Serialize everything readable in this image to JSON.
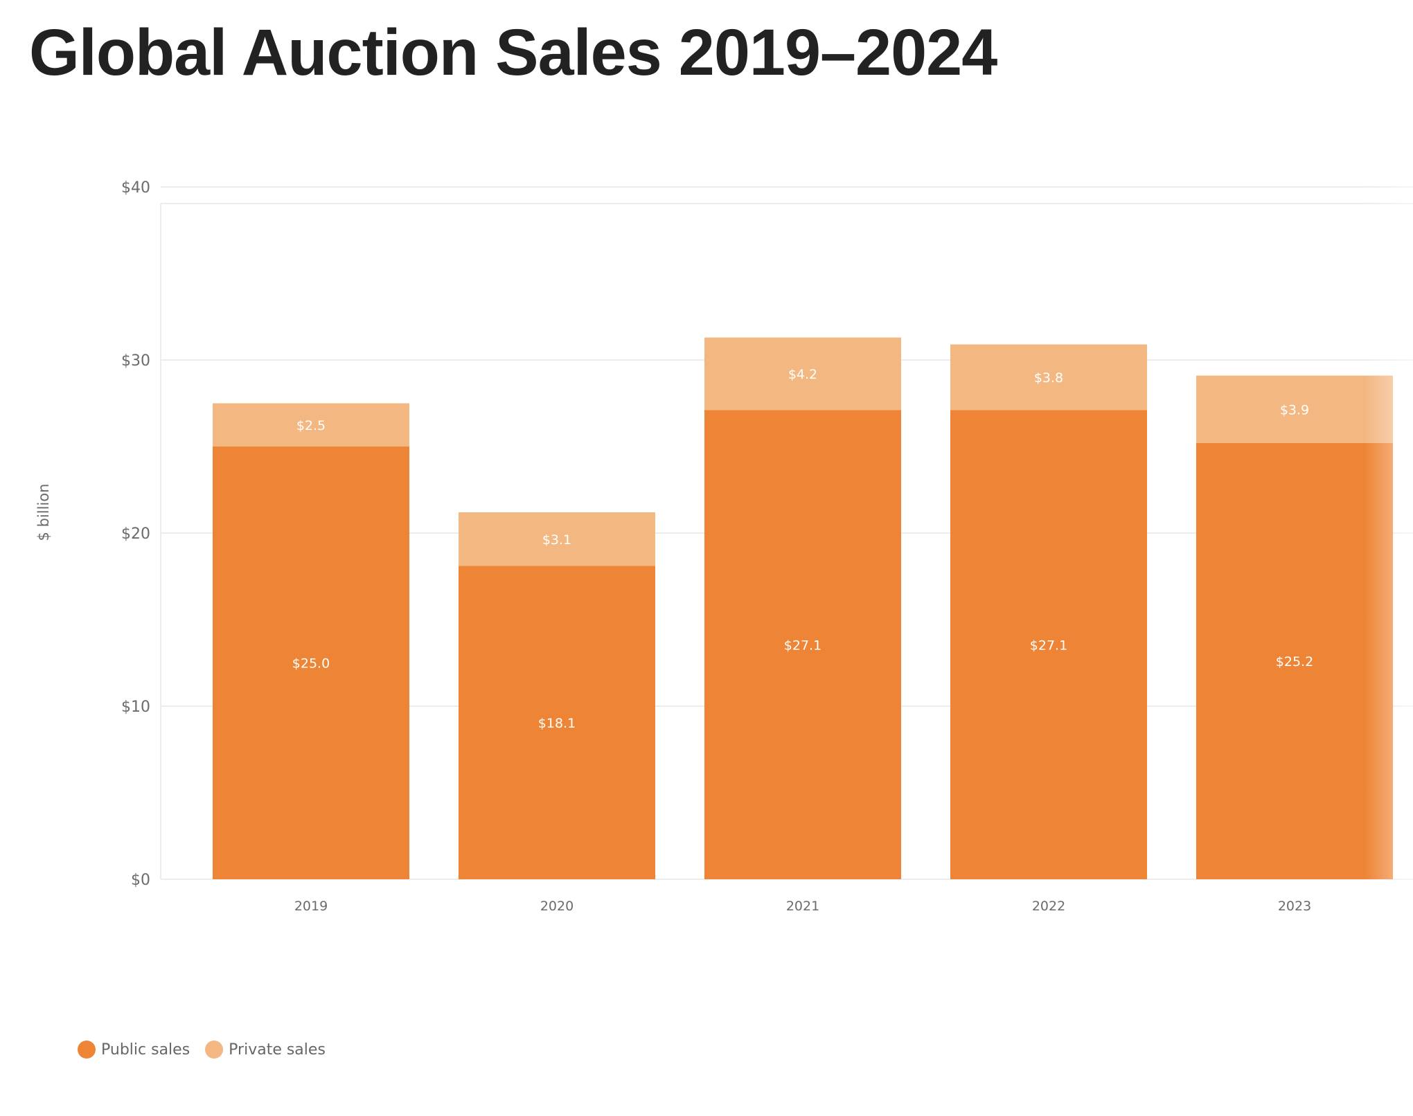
{
  "page": {
    "title": "Global Auction Sales 2019–2024"
  },
  "colors": {
    "public": "#EE8435",
    "private": "#F3B782",
    "grid": "#ECECEC",
    "axis_text": "#6B6B6B",
    "bar_label": "#FFFFFF"
  },
  "legend": {
    "items": [
      {
        "label": "Public sales",
        "color": "#EE8435"
      },
      {
        "label": "Private sales",
        "color": "#F3B782"
      }
    ]
  },
  "chart_data": {
    "type": "bar",
    "stacked": true,
    "title": "Global Auction Sales 2019–2024",
    "xlabel": "",
    "ylabel": "$ billion",
    "categories": [
      "2019",
      "2020",
      "2021",
      "2022",
      "2023"
    ],
    "series": [
      {
        "name": "Public sales",
        "values": [
          25.0,
          18.1,
          27.1,
          27.1,
          25.2
        ],
        "labels": [
          "$25.0",
          "$18.1",
          "$27.1",
          "$27.1",
          "$25.2"
        ]
      },
      {
        "name": "Private sales",
        "values": [
          2.5,
          3.1,
          4.2,
          3.8,
          3.9
        ],
        "labels": [
          "$2.5",
          "$3.1",
          "$4.2",
          "$3.8",
          "$3.9"
        ]
      }
    ],
    "ylim": [
      0,
      40
    ],
    "yticks": [
      0,
      10,
      20,
      30,
      40
    ],
    "ytick_labels": [
      "$0",
      "$10",
      "$20",
      "$30",
      "$40"
    ],
    "grid": true,
    "legend_position": "bottom-left"
  }
}
